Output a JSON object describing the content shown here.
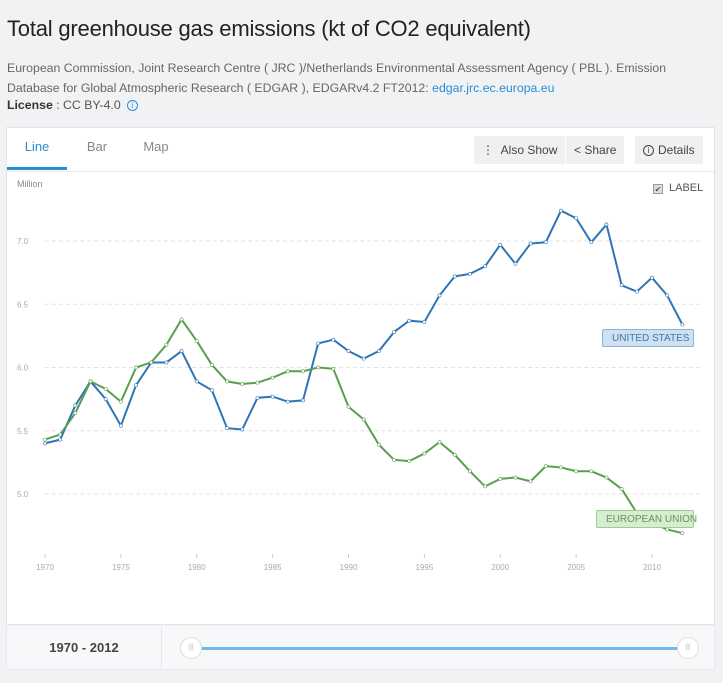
{
  "header": {
    "title": "Total greenhouse gas emissions (kt of CO2 equivalent)",
    "source_text": "European Commission, Joint Research Centre ( JRC )/Netherlands Environmental Assessment Agency ( PBL ). Emission Database for Global Atmospheric Research ( EDGAR ), EDGARv4.2 FT2012: ",
    "source_link": "edgar.jrc.ec.europa.eu",
    "license_label": "License",
    "license_value": " : CC BY-4.0"
  },
  "tabs": [
    {
      "label": "Line"
    },
    {
      "label": "Bar"
    },
    {
      "label": "Map"
    }
  ],
  "toolbar": {
    "also_show": "Also Show",
    "share": "Share",
    "details": "Details"
  },
  "label_toggle": {
    "label": "LABEL",
    "checked": true
  },
  "range": {
    "text": "1970 - 2012",
    "start": 1970,
    "end": 2012
  },
  "colors": {
    "us": "#2e75b6",
    "eu": "#5a9e4f",
    "accent": "#2a8dd4"
  },
  "chart_data": {
    "type": "line",
    "title": "Total greenhouse gas emissions (kt of CO2 equivalent)",
    "ylabel": "Million",
    "ylim": [
      4.6,
      7.35
    ],
    "yticks": [
      "5.0",
      "5.5",
      "6.0",
      "6.5",
      "7.0"
    ],
    "xticks": [
      "1970",
      "1975",
      "1980",
      "1985",
      "1990",
      "1995",
      "2000",
      "2005",
      "2010"
    ],
    "x": [
      1970,
      1971,
      1972,
      1973,
      1974,
      1975,
      1976,
      1977,
      1978,
      1979,
      1980,
      1981,
      1982,
      1983,
      1984,
      1985,
      1986,
      1987,
      1988,
      1989,
      1990,
      1991,
      1992,
      1993,
      1994,
      1995,
      1996,
      1997,
      1998,
      1999,
      2000,
      2001,
      2002,
      2003,
      2004,
      2005,
      2006,
      2007,
      2008,
      2009,
      2010,
      2011,
      2012
    ],
    "series": [
      {
        "name": "UNITED STATES",
        "values": [
          5.4,
          5.43,
          5.7,
          5.89,
          5.75,
          5.54,
          5.86,
          6.04,
          6.04,
          6.13,
          5.89,
          5.82,
          5.52,
          5.51,
          5.76,
          5.77,
          5.73,
          5.74,
          6.19,
          6.22,
          6.13,
          6.07,
          6.13,
          6.28,
          6.37,
          6.36,
          6.57,
          6.72,
          6.74,
          6.8,
          6.97,
          6.82,
          6.98,
          6.99,
          7.24,
          7.18,
          6.99,
          7.13,
          6.65,
          6.6,
          6.71,
          6.57,
          6.34
        ]
      },
      {
        "name": "EUROPEAN UNION",
        "values": [
          5.43,
          5.47,
          5.64,
          5.89,
          5.83,
          5.73,
          6.0,
          6.04,
          6.18,
          6.38,
          6.21,
          6.02,
          5.89,
          5.87,
          5.88,
          5.92,
          5.97,
          5.97,
          6.0,
          5.99,
          5.69,
          5.59,
          5.39,
          5.27,
          5.26,
          5.32,
          5.41,
          5.31,
          5.18,
          5.06,
          5.12,
          5.13,
          5.1,
          5.22,
          5.21,
          5.18,
          5.18,
          5.13,
          5.04,
          4.85,
          4.77,
          4.72,
          4.69
        ]
      }
    ]
  }
}
